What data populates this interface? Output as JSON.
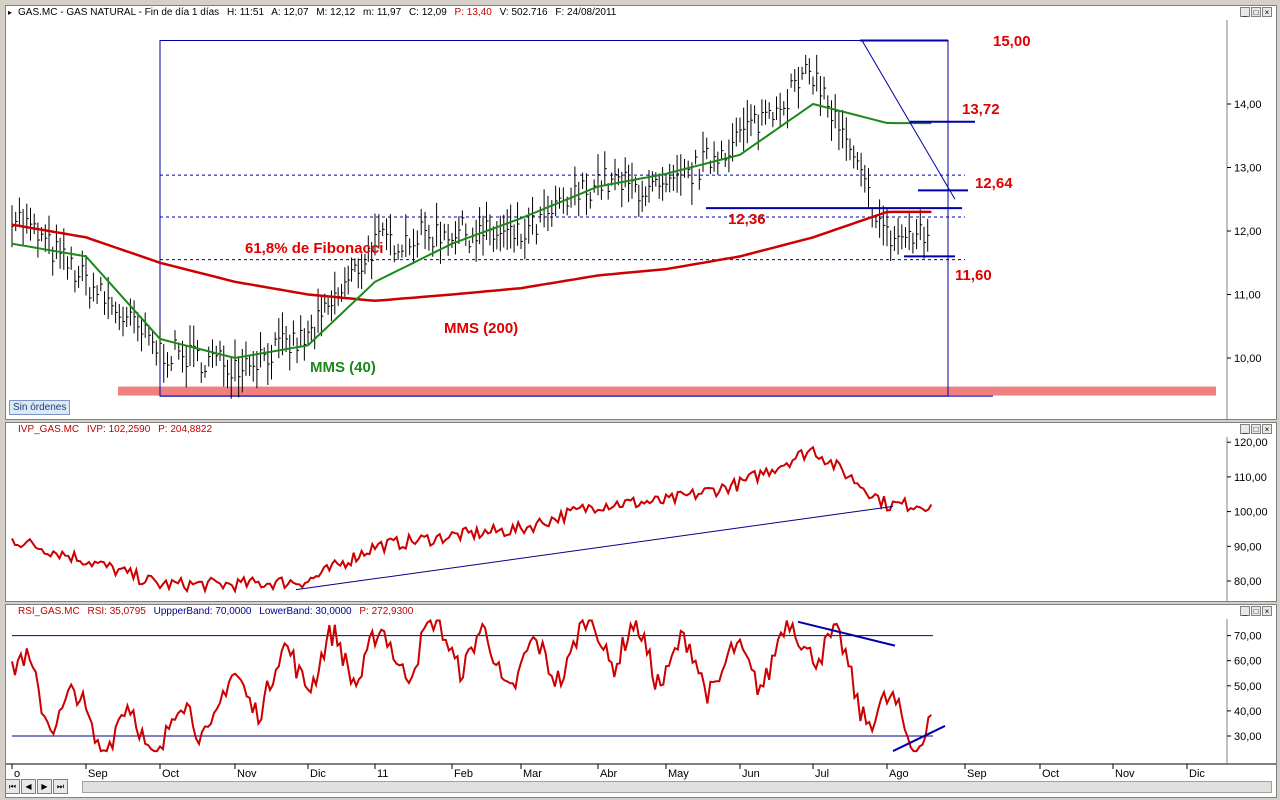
{
  "price_panel": {
    "header": {
      "symbol": "GAS.MC - GAS NATURAL - Fin de día 1 días",
      "hora": "H: 11:51",
      "apertura": "A: 12,07",
      "maximo": "M: 12,12",
      "minimo": "m: 11,97",
      "cierre": "C: 12,09",
      "precio": "P: 13,40",
      "volumen": "V: 502.716",
      "fecha": "F: 24/08/2011"
    },
    "sin_ordenes": "Sin órdenes",
    "annotations": {
      "level_1500": "15,00",
      "level_1372": "13,72",
      "level_1264": "12,64",
      "level_1236": "12,36",
      "level_1160": "11,60",
      "fibonacci": "61,8% de Fibonacci",
      "mms200": "MMS (200)",
      "mms40": "MMS (40)"
    },
    "colors": {
      "price": "#000000",
      "mms200": "#cc0000",
      "mms40": "#1a8a1a",
      "trend": "#0000aa",
      "support_band": "#f08080",
      "annotation": "#e00000"
    }
  },
  "ivp_panel": {
    "header": {
      "name": "IVP_GAS.MC",
      "ivp": "IVP: 102,2590",
      "p": "P: 204,8822"
    }
  },
  "rsi_panel": {
    "header": {
      "name": "RSI_GAS.MC",
      "rsi": "RSI: 35,0795",
      "upper": "UppperBand: 70,0000",
      "lower": "LowerBand: 30,0000",
      "p": "P: 272,9300"
    }
  },
  "x_axis": {
    "labels": [
      "o",
      "Sep",
      "Oct",
      "Nov",
      "Dic",
      "11",
      "Feb",
      "Mar",
      "Abr",
      "May",
      "Jun",
      "Jul",
      "Ago",
      "Sep",
      "Oct",
      "Nov",
      "Dic"
    ]
  },
  "chart_data": [
    {
      "type": "line",
      "title": "",
      "series_desc": "GAS.MC daily price bars with moving averages",
      "yticks": [
        "10,00",
        "11,00",
        "12,00",
        "13,00",
        "14,00"
      ],
      "ylim": [
        9.0,
        15.0
      ],
      "categories": [
        "Ago",
        "Sep",
        "Oct",
        "Nov",
        "Dic",
        "Ene",
        "Feb",
        "Mar",
        "Abr",
        "May",
        "Jun",
        "Jul",
        "Ago"
      ],
      "series": [
        {
          "name": "",
          "values": [
            12.3,
            11.2,
            10.1,
            9.9,
            10.3,
            11.8,
            12.0,
            11.9,
            12.8,
            12.6,
            13.5,
            14.5,
            11.9
          ]
        },
        {
          "name": "MMS (40)",
          "values": [
            11.8,
            11.6,
            10.3,
            10.0,
            10.2,
            11.2,
            11.8,
            12.2,
            12.7,
            12.9,
            13.2,
            14.0,
            13.7
          ]
        },
        {
          "name": "MMS (200)",
          "values": [
            12.1,
            11.9,
            11.5,
            11.2,
            11.0,
            10.9,
            11.0,
            11.1,
            11.3,
            11.4,
            11.6,
            11.9,
            12.3
          ]
        }
      ],
      "levels": [
        15.0,
        13.72,
        12.64,
        12.36,
        11.6
      ]
    },
    {
      "type": "line",
      "title": "",
      "yticks": [
        "80,00",
        "90,00",
        "100,00",
        "110,00",
        "120,00"
      ],
      "ylim": [
        76,
        122
      ],
      "categories": [
        "Ago",
        "Sep",
        "Oct",
        "Nov",
        "Dic",
        "Ene",
        "Feb",
        "Mar",
        "Abr",
        "May",
        "Jun",
        "Jul",
        "Ago"
      ],
      "series": [
        {
          "name": "IVP_GAS.MC",
          "values": [
            92,
            86,
            79,
            79,
            80,
            90,
            93,
            95,
            102,
            103,
            108,
            118,
            102
          ]
        }
      ]
    },
    {
      "type": "line",
      "title": "",
      "yticks": [
        "30,00",
        "40,00",
        "50,00",
        "60,00",
        "70,00"
      ],
      "ylim": [
        20,
        78
      ],
      "bands": [
        70,
        30
      ],
      "categories": [
        "Ago",
        "Sep",
        "Oct",
        "Nov",
        "Dic",
        "Ene",
        "Feb",
        "Mar",
        "Abr",
        "May",
        "Jun",
        "Jul",
        "Ago"
      ],
      "series": [
        {
          "name": "RSI_GAS.MC",
          "values": [
            55,
            35,
            30,
            45,
            60,
            62,
            68,
            55,
            70,
            60,
            55,
            72,
            35
          ]
        }
      ]
    }
  ]
}
